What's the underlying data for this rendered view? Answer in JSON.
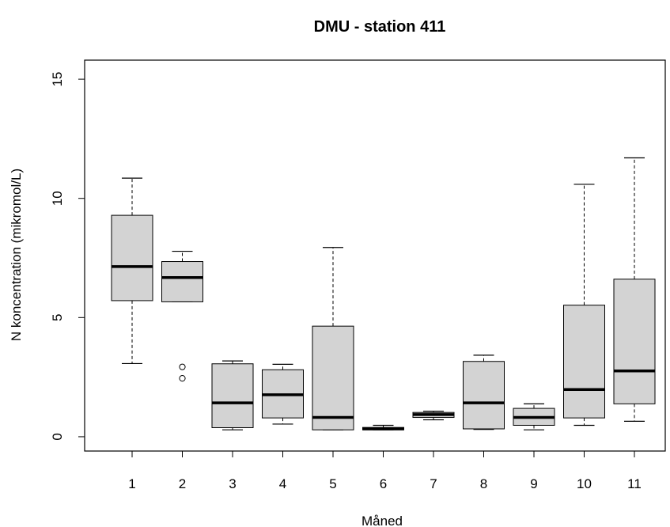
{
  "chart_data": {
    "type": "boxplot",
    "title": "DMU - station 411",
    "xlabel": "Måned",
    "ylabel": "N koncentration (mikromol/L)",
    "categories": [
      "1",
      "2",
      "3",
      "4",
      "5",
      "6",
      "7",
      "8",
      "9",
      "10",
      "11"
    ],
    "ylim": [
      -0.6,
      15.8
    ],
    "yticks": [
      0,
      5,
      10,
      15
    ],
    "box_fill": "#d3d3d3",
    "boxes": [
      {
        "label": "1",
        "whisker_low": 3.07,
        "q1": 5.71,
        "median": 7.14,
        "q3": 9.29,
        "whisker_high": 10.85,
        "outliers": []
      },
      {
        "label": "2",
        "whisker_low": 5.66,
        "q1": 5.66,
        "median": 6.68,
        "q3": 7.35,
        "whisker_high": 7.78,
        "outliers": [
          2.45,
          2.93
        ]
      },
      {
        "label": "3",
        "whisker_low": 0.29,
        "q1": 0.38,
        "median": 1.42,
        "q3": 3.06,
        "whisker_high": 3.18,
        "outliers": []
      },
      {
        "label": "4",
        "whisker_low": 0.53,
        "q1": 0.79,
        "median": 1.76,
        "q3": 2.81,
        "whisker_high": 3.04,
        "outliers": []
      },
      {
        "label": "5",
        "whisker_low": 0.29,
        "q1": 0.29,
        "median": 0.81,
        "q3": 4.64,
        "whisker_high": 7.94,
        "outliers": []
      },
      {
        "label": "6",
        "whisker_low": 0.29,
        "q1": 0.29,
        "median": 0.33,
        "q3": 0.39,
        "whisker_high": 0.48,
        "outliers": []
      },
      {
        "label": "7",
        "whisker_low": 0.71,
        "q1": 0.81,
        "median": 0.93,
        "q3": 1.02,
        "whisker_high": 1.07,
        "outliers": []
      },
      {
        "label": "8",
        "whisker_low": 0.31,
        "q1": 0.33,
        "median": 1.42,
        "q3": 3.16,
        "whisker_high": 3.42,
        "outliers": []
      },
      {
        "label": "9",
        "whisker_low": 0.29,
        "q1": 0.48,
        "median": 0.81,
        "q3": 1.19,
        "whisker_high": 1.38,
        "outliers": []
      },
      {
        "label": "10",
        "whisker_low": 0.48,
        "q1": 0.79,
        "median": 1.98,
        "q3": 5.52,
        "whisker_high": 10.59,
        "outliers": []
      },
      {
        "label": "11",
        "whisker_low": 0.65,
        "q1": 1.38,
        "median": 2.76,
        "q3": 6.61,
        "whisker_high": 11.7,
        "outliers": []
      }
    ]
  }
}
